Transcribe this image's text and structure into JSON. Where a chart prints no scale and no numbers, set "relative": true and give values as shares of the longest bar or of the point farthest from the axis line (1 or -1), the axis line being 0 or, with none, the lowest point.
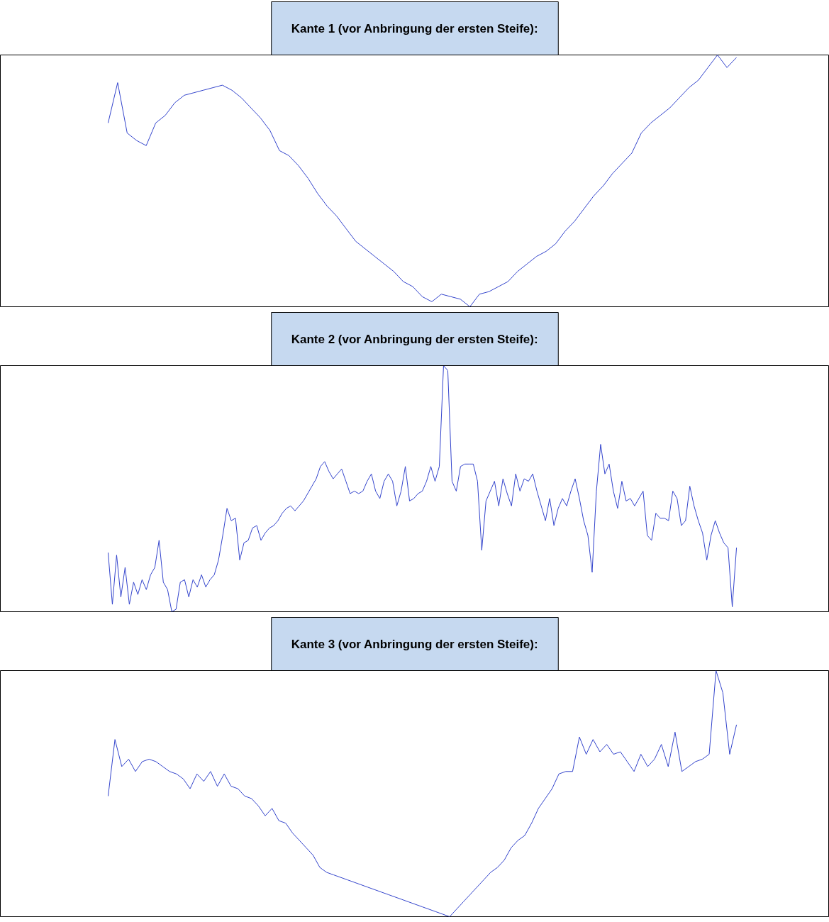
{
  "chart_data": [
    {
      "type": "line",
      "title": "Kante 1 (vor Anbringung der ersten Steife):",
      "relative": true,
      "categories": [
        null,
        null,
        null,
        null,
        null,
        null,
        null,
        null,
        null,
        null,
        null,
        null,
        null,
        null,
        null,
        null,
        null,
        null,
        null,
        null,
        null,
        null,
        null,
        null,
        null,
        null,
        null,
        null,
        null,
        null,
        null,
        null,
        null,
        null,
        null,
        null,
        null,
        null,
        null,
        null,
        null,
        null,
        null,
        null,
        null,
        null,
        null,
        null,
        null,
        null,
        null,
        null,
        null,
        null,
        null,
        null,
        null,
        null,
        null,
        null,
        null,
        null,
        null,
        null,
        null,
        null,
        null
      ],
      "series": [
        {
          "color": "#3344cc",
          "values": [
            0.73,
            0.89,
            0.69,
            0.66,
            0.64,
            0.73,
            0.76,
            0.81,
            0.84,
            0.85,
            0.86,
            0.87,
            0.88,
            0.86,
            0.83,
            0.79,
            0.75,
            0.7,
            0.62,
            0.6,
            0.56,
            0.51,
            0.45,
            0.4,
            0.36,
            0.31,
            0.26,
            0.23,
            0.2,
            0.17,
            0.14,
            0.1,
            0.08,
            0.04,
            0.02,
            0.05,
            0.04,
            0.03,
            0,
            0.05,
            0.06,
            0.08,
            0.1,
            0.14,
            0.17,
            0.2,
            0.22,
            0.25,
            0.3,
            0.34,
            0.39,
            0.44,
            0.48,
            0.53,
            0.57,
            0.61,
            0.69,
            0.73,
            0.76,
            0.79,
            0.83,
            0.87,
            0.9,
            0.95,
            1,
            0.95,
            0.99
          ]
        }
      ]
    },
    {
      "type": "line",
      "title": "Kante 2 (vor Anbringung der ersten Steife):",
      "relative": true,
      "categories": [
        null,
        null,
        null,
        null,
        null,
        null,
        null,
        null,
        null,
        null,
        null,
        null,
        null,
        null,
        null,
        null,
        null,
        null,
        null,
        null,
        null,
        null,
        null,
        null,
        null,
        null,
        null,
        null,
        null,
        null,
        null,
        null,
        null,
        null,
        null,
        null,
        null,
        null,
        null,
        null,
        null,
        null,
        null,
        null,
        null,
        null,
        null,
        null,
        null,
        null,
        null,
        null,
        null,
        null,
        null,
        null,
        null,
        null,
        null,
        null,
        null,
        null,
        null,
        null,
        null,
        null,
        null,
        null,
        null,
        null,
        null,
        null,
        null,
        null,
        null,
        null,
        null,
        null,
        null,
        null,
        null,
        null,
        null,
        null,
        null,
        null,
        null,
        null,
        null,
        null,
        null,
        null,
        null,
        null,
        null,
        null,
        null,
        null,
        null,
        null,
        null,
        null,
        null,
        null,
        null,
        null,
        null,
        null,
        null,
        null,
        null,
        null,
        null,
        null,
        null,
        null,
        null,
        null,
        null,
        null,
        null,
        null,
        null,
        null,
        null,
        null,
        null,
        null,
        null,
        null,
        null,
        null,
        null,
        null,
        null,
        null,
        null,
        null,
        null,
        null,
        null,
        null,
        null,
        null,
        null,
        null,
        null,
        null,
        null
      ],
      "series": [
        {
          "color": "#3344cc",
          "values": [
            0.24,
            0.03,
            0.23,
            0.06,
            0.18,
            0.03,
            0.12,
            0.07,
            0.13,
            0.09,
            0.15,
            0.18,
            0.29,
            0.12,
            0.09,
            0,
            0.01,
            0.12,
            0.13,
            0.06,
            0.13,
            0.1,
            0.15,
            0.1,
            0.13,
            0.15,
            0.21,
            0.31,
            0.42,
            0.37,
            0.38,
            0.21,
            0.28,
            0.29,
            0.34,
            0.35,
            0.29,
            0.32,
            0.34,
            0.35,
            0.37,
            0.4,
            0.42,
            0.43,
            0.41,
            0.43,
            0.45,
            0.48,
            0.51,
            0.54,
            0.59,
            0.61,
            0.57,
            0.54,
            0.56,
            0.58,
            0.53,
            0.48,
            0.49,
            0.48,
            0.49,
            0.53,
            0.56,
            0.49,
            0.46,
            0.53,
            0.56,
            0.53,
            0.43,
            0.49,
            0.59,
            0.45,
            0.46,
            0.48,
            0.49,
            0.53,
            0.59,
            0.53,
            0.59,
            1,
            0.98,
            0.53,
            0.49,
            0.59,
            0.6,
            0.6,
            0.6,
            0.53,
            0.25,
            0.45,
            0.49,
            0.53,
            0.43,
            0.54,
            0.48,
            0.43,
            0.56,
            0.49,
            0.54,
            0.53,
            0.56,
            0.49,
            0.43,
            0.37,
            0.46,
            0.35,
            0.42,
            0.46,
            0.43,
            0.49,
            0.54,
            0.46,
            0.37,
            0.31,
            0.16,
            0.49,
            0.68,
            0.56,
            0.6,
            0.49,
            0.42,
            0.53,
            0.45,
            0.46,
            0.43,
            0.46,
            0.49,
            0.31,
            0.29,
            0.4,
            0.38,
            0.38,
            0.37,
            0.49,
            0.46,
            0.35,
            0.37,
            0.51,
            0.43,
            0.37,
            0.32,
            0.21,
            0.31,
            0.37,
            0.32,
            0.28,
            0.26,
            0.02,
            0.26
          ]
        }
      ]
    },
    {
      "type": "line",
      "title": "Kante 3 (vor Anbringung der ersten Steife):",
      "relative": true,
      "categories": [
        null,
        null,
        null,
        null,
        null,
        null,
        null,
        null,
        null,
        null,
        null,
        null,
        null,
        null,
        null,
        null,
        null,
        null,
        null,
        null,
        null,
        null,
        null,
        null,
        null,
        null,
        null,
        null,
        null,
        null,
        null,
        null,
        null,
        null,
        null,
        null,
        null,
        null,
        null,
        null,
        null,
        null,
        null,
        null,
        null,
        null,
        null,
        null,
        null,
        null,
        null,
        null,
        null,
        null,
        null,
        null,
        null,
        null,
        null,
        null,
        null,
        null,
        null,
        null,
        null,
        null,
        null,
        null,
        null,
        null,
        null,
        null,
        null,
        null,
        null,
        null,
        null,
        null,
        null,
        null,
        null,
        null,
        null,
        null,
        null,
        null,
        null,
        null,
        null,
        null,
        null,
        null,
        null
      ],
      "series": [
        {
          "color": "#3344cc",
          "values": [
            0.49,
            0.72,
            0.61,
            0.64,
            0.59,
            0.63,
            0.64,
            0.63,
            0.61,
            0.59,
            0.58,
            0.56,
            0.52,
            0.58,
            0.55,
            0.59,
            0.53,
            0.58,
            0.53,
            0.52,
            0.49,
            0.48,
            0.45,
            0.41,
            0.44,
            0.39,
            0.38,
            0.34,
            0.31,
            0.28,
            0.25,
            0.2,
            0.18,
            0.17,
            0.16,
            0.15,
            0.14,
            0.13,
            0.12,
            0.11,
            0.1,
            0.09,
            0.08,
            0.07,
            0.06,
            0.05,
            0.04,
            0.03,
            0.02,
            0.01,
            0,
            0.03,
            0.06,
            0.09,
            0.12,
            0.15,
            0.18,
            0.2,
            0.23,
            0.28,
            0.31,
            0.33,
            0.38,
            0.44,
            0.48,
            0.52,
            0.58,
            0.59,
            0.59,
            0.73,
            0.66,
            0.72,
            0.67,
            0.7,
            0.66,
            0.67,
            0.63,
            0.59,
            0.66,
            0.61,
            0.64,
            0.7,
            0.61,
            0.75,
            0.59,
            0.61,
            0.63,
            0.64,
            0.66,
            1,
            0.91,
            0.66,
            0.78
          ]
        }
      ]
    }
  ]
}
